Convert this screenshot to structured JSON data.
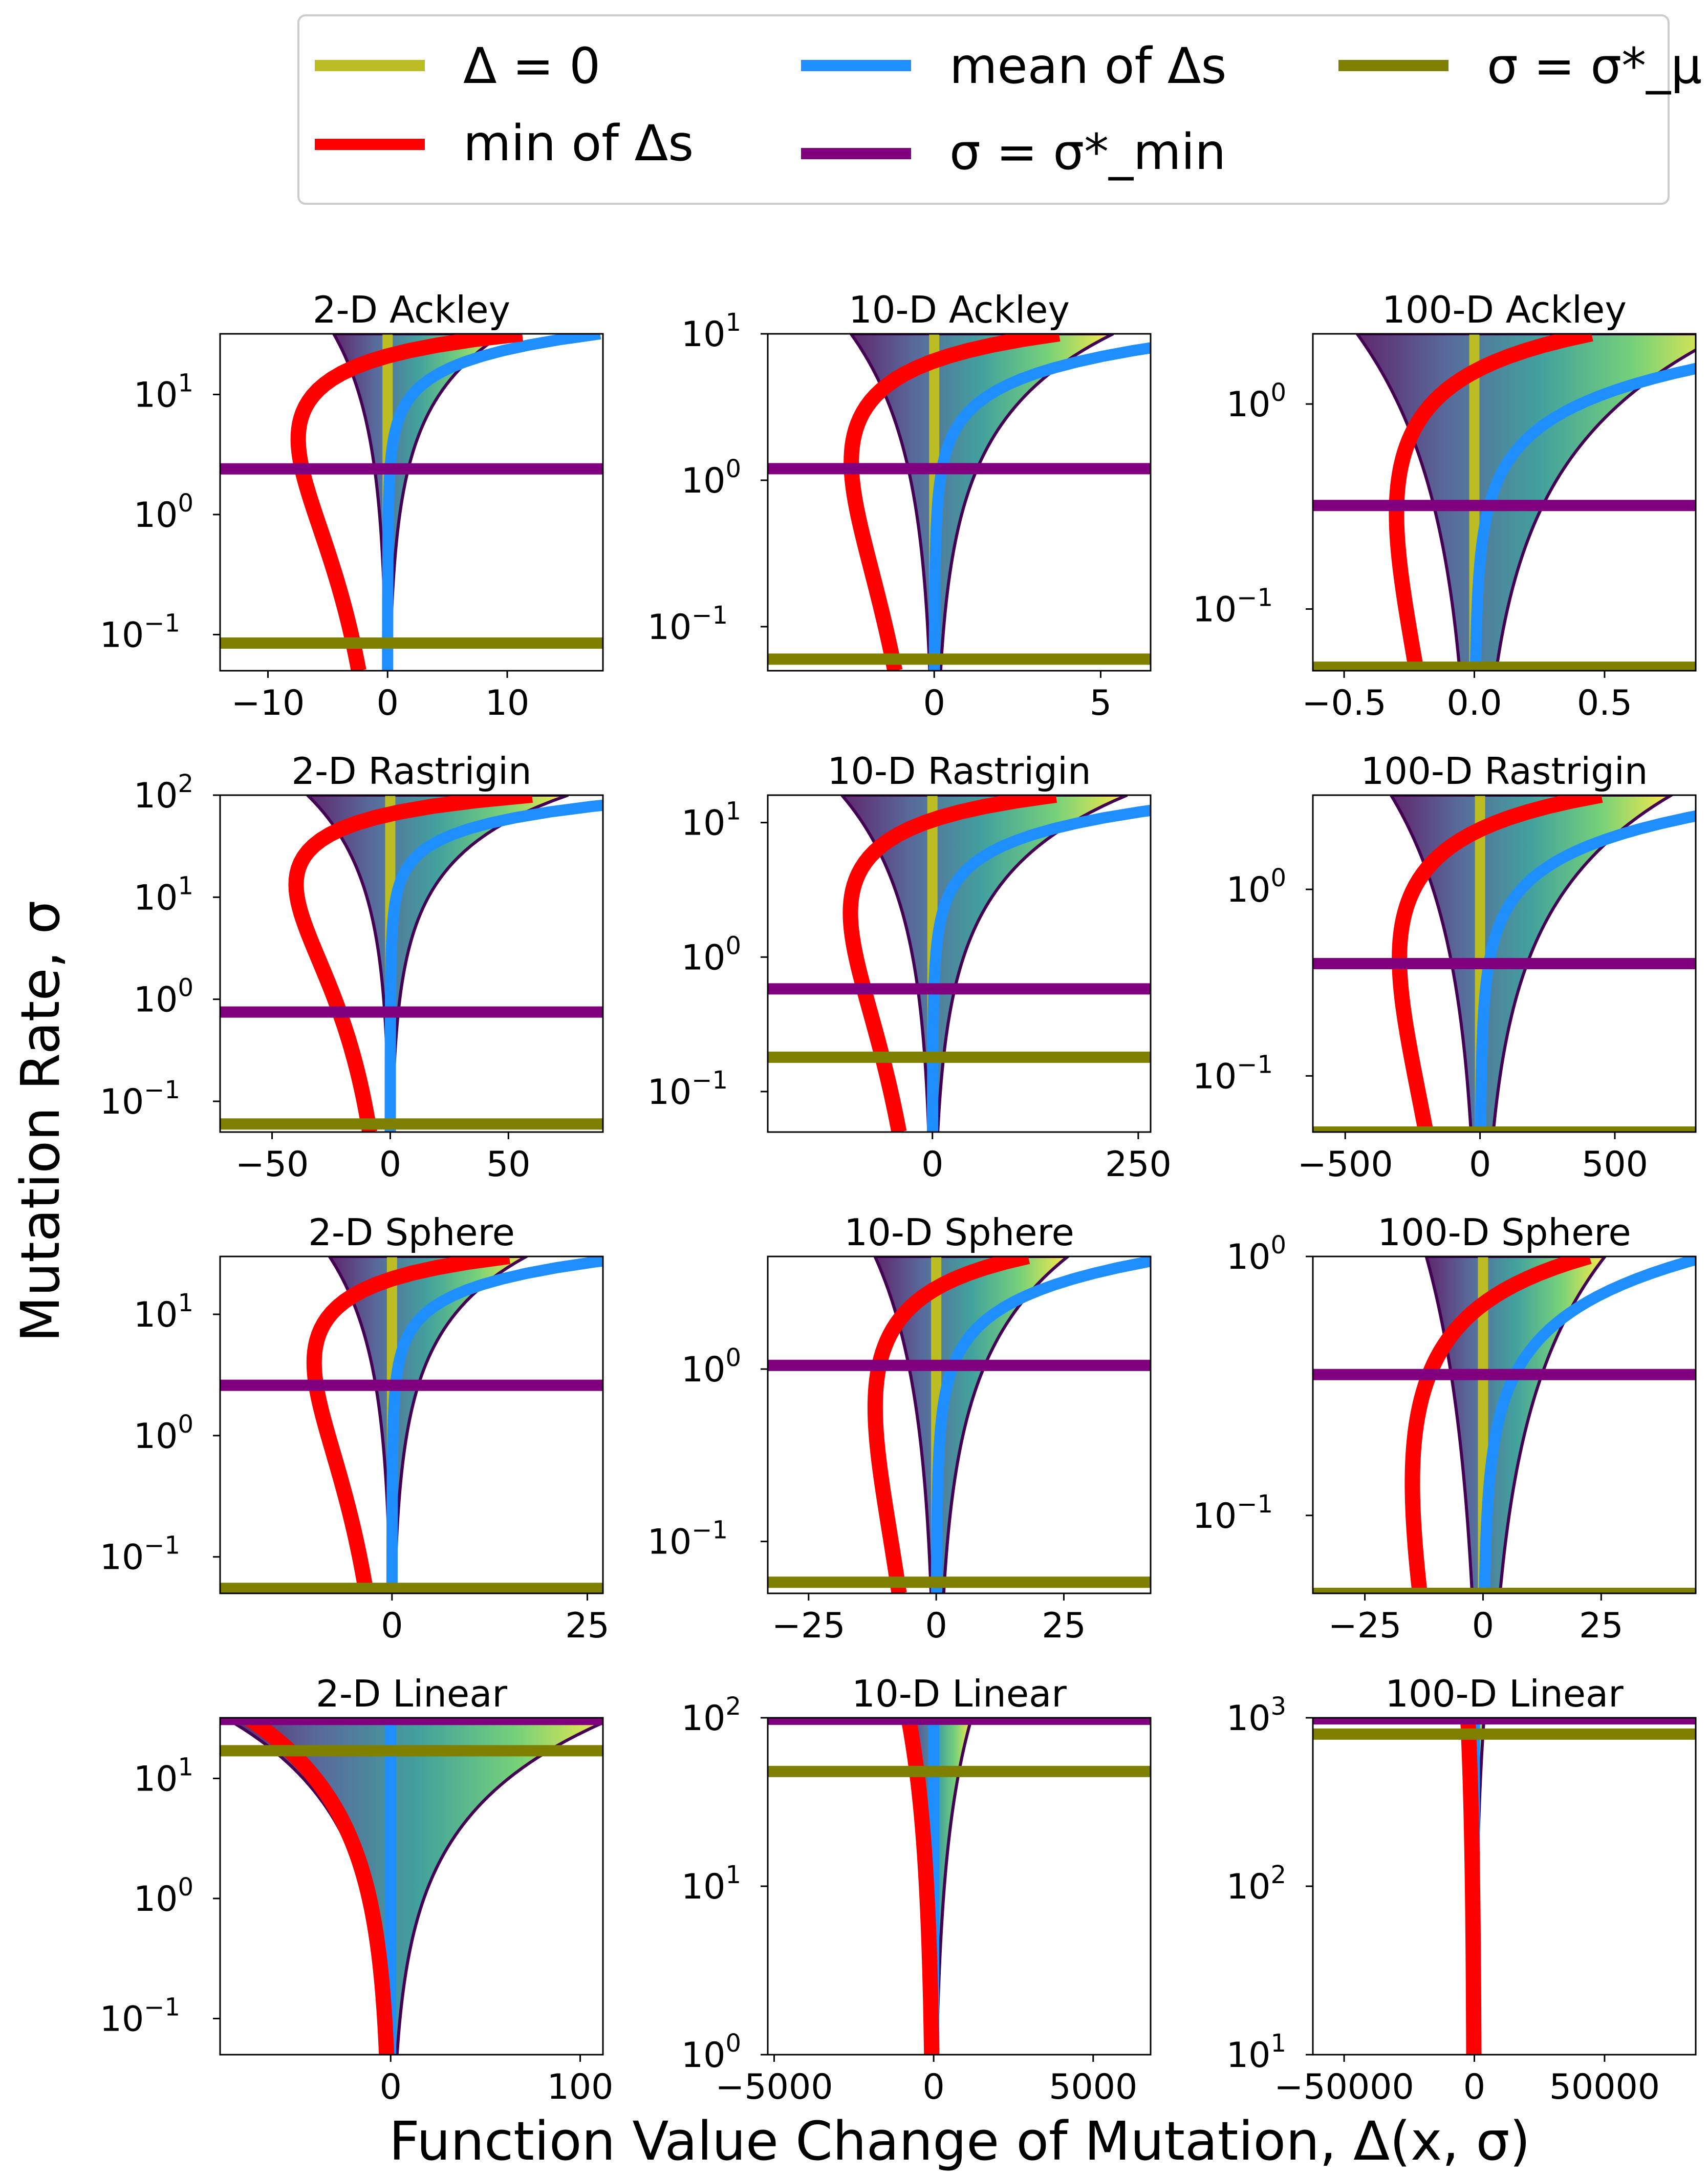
{
  "figure": {
    "ylabel": "Mutation Rate, σ",
    "xlabel": "Function Value Change of Mutation, Δ(x, σ)"
  },
  "legend": {
    "placement": "top-center",
    "entries": [
      {
        "key": "delta0",
        "label": "Δ = 0",
        "color": "#bcbd22"
      },
      {
        "key": "min",
        "label": "min of Δs",
        "color": "#ff0000"
      },
      {
        "key": "mean",
        "label": "mean of Δs",
        "color": "#1f8fff"
      },
      {
        "key": "sigma_min",
        "label": "σ = σ*_min",
        "color": "#800080"
      },
      {
        "key": "sigma_mu",
        "label": "σ = σ*_μ",
        "color": "#808000"
      }
    ]
  },
  "chart_data": [
    {
      "type": "heatmap",
      "title": "2-D Ackley",
      "xlim": [
        -14,
        18
      ],
      "ylim": [
        0.05,
        32
      ],
      "xticks": [
        {
          "v": -10,
          "t": "−10"
        },
        {
          "v": 0,
          "t": "0"
        },
        {
          "v": 10,
          "t": "10"
        }
      ],
      "yticks": [
        {
          "v": 10,
          "e": "1"
        },
        {
          "v": 1,
          "e": "0"
        },
        {
          "v": 0.1,
          "e": "−1"
        }
      ],
      "sigma_min": 2.4,
      "sigma_mu": 0.085,
      "spread": 4.5,
      "minmax": 7.5
    },
    {
      "type": "heatmap",
      "title": "10-D Ackley",
      "xlim": [
        -5,
        6.5
      ],
      "ylim": [
        0.05,
        10
      ],
      "xticks": [
        {
          "v": 0,
          "t": "0"
        },
        {
          "v": 5,
          "t": "5"
        }
      ],
      "yticks": [
        {
          "v": 10,
          "e": "1"
        },
        {
          "v": 1,
          "e": "0"
        },
        {
          "v": 0.1,
          "e": "−1"
        }
      ],
      "sigma_min": 1.2,
      "sigma_mu": 0.06,
      "spread": 2.5,
      "minmax": 2.5
    },
    {
      "type": "heatmap",
      "title": "100-D Ackley",
      "xlim": [
        -0.62,
        0.85
      ],
      "ylim": [
        0.05,
        2.2
      ],
      "xticks": [
        {
          "v": -0.5,
          "t": "−0.5"
        },
        {
          "v": 0,
          "t": "0.0"
        },
        {
          "v": 0.5,
          "t": "0.5"
        }
      ],
      "yticks": [
        {
          "v": 1,
          "e": "0"
        },
        {
          "v": 0.1,
          "e": "−1"
        }
      ],
      "sigma_min": 0.32,
      "sigma_mu": 0.052,
      "spread": 0.45,
      "minmax": 0.3
    },
    {
      "type": "heatmap",
      "title": "2-D Rastrigin",
      "xlim": [
        -72,
        90
      ],
      "ylim": [
        0.05,
        100
      ],
      "xticks": [
        {
          "v": -50,
          "t": "−50"
        },
        {
          "v": 0,
          "t": "0"
        },
        {
          "v": 50,
          "t": "50"
        }
      ],
      "yticks": [
        {
          "v": 100,
          "e": "2"
        },
        {
          "v": 10,
          "e": "1"
        },
        {
          "v": 1,
          "e": "0"
        },
        {
          "v": 0.1,
          "e": "−1"
        }
      ],
      "sigma_min": 0.75,
      "sigma_mu": 0.06,
      "spread": 35,
      "minmax": 40
    },
    {
      "type": "heatmap",
      "title": "10-D Rastrigin",
      "xlim": [
        -200,
        265
      ],
      "ylim": [
        0.05,
        16
      ],
      "xticks": [
        {
          "v": 0,
          "t": "0"
        },
        {
          "v": 250,
          "t": "250"
        }
      ],
      "yticks": [
        {
          "v": 10,
          "e": "1"
        },
        {
          "v": 1,
          "e": "0"
        },
        {
          "v": 0.1,
          "e": "−1"
        }
      ],
      "sigma_min": 0.58,
      "sigma_mu": 0.18,
      "spread": 110,
      "minmax": 100
    },
    {
      "type": "heatmap",
      "title": "100-D Rastrigin",
      "xlim": [
        -620,
        800
      ],
      "ylim": [
        0.05,
        3.2
      ],
      "xticks": [
        {
          "v": -500,
          "t": "−500"
        },
        {
          "v": 0,
          "t": "0"
        },
        {
          "v": 500,
          "t": "500"
        }
      ],
      "yticks": [
        {
          "v": 1,
          "e": "0"
        },
        {
          "v": 0.1,
          "e": "−1"
        }
      ],
      "sigma_min": 0.4,
      "sigma_mu": 0.05,
      "spread": 330,
      "minmax": 300
    },
    {
      "type": "heatmap",
      "title": "2-D Sphere",
      "xlim": [
        -22,
        27
      ],
      "ylim": [
        0.05,
        30
      ],
      "xticks": [
        {
          "v": 0,
          "t": "0"
        },
        {
          "v": 25,
          "t": "25"
        }
      ],
      "yticks": [
        {
          "v": 10,
          "e": "1"
        },
        {
          "v": 1,
          "e": "0"
        },
        {
          "v": 0.1,
          "e": "−1"
        }
      ],
      "sigma_min": 2.6,
      "sigma_mu": 0.055,
      "spread": 8,
      "minmax": 10
    },
    {
      "type": "heatmap",
      "title": "10-D Sphere",
      "xlim": [
        -33,
        42
      ],
      "ylim": [
        0.05,
        4.5
      ],
      "xticks": [
        {
          "v": -25,
          "t": "−25"
        },
        {
          "v": 0,
          "t": "0"
        },
        {
          "v": 25,
          "t": "25"
        }
      ],
      "yticks": [
        {
          "v": 1,
          "e": "0"
        },
        {
          "v": 0.1,
          "e": "−1"
        }
      ],
      "sigma_min": 1.05,
      "sigma_mu": 0.058,
      "spread": 12,
      "minmax": 12
    },
    {
      "type": "heatmap",
      "title": "100-D Sphere",
      "xlim": [
        -36,
        45
      ],
      "ylim": [
        0.05,
        1
      ],
      "xticks": [
        {
          "v": -25,
          "t": "−25"
        },
        {
          "v": 0,
          "t": "0"
        },
        {
          "v": 25,
          "t": "25"
        }
      ],
      "yticks": [
        {
          "v": 1,
          "e": "0"
        },
        {
          "v": 0.1,
          "e": "−1"
        }
      ],
      "sigma_min": 0.35,
      "sigma_mu": 0.05,
      "spread": 12,
      "minmax": 15
    },
    {
      "type": "heatmap",
      "title": "2-D Linear",
      "xlim": [
        -90,
        112
      ],
      "ylim": [
        0.05,
        32
      ],
      "xticks": [
        {
          "v": 0,
          "t": "0"
        },
        {
          "v": 100,
          "t": "100"
        }
      ],
      "yticks": [
        {
          "v": 10,
          "e": "1"
        },
        {
          "v": 1,
          "e": "0"
        },
        {
          "v": 0.1,
          "e": "−1"
        }
      ],
      "sigma_min": 31,
      "sigma_mu": 17,
      "spread": 2.5,
      "minmax": 2.4,
      "linear": true
    },
    {
      "type": "heatmap",
      "title": "10-D Linear",
      "xlim": [
        -5200,
        6800
      ],
      "ylim": [
        1,
        100
      ],
      "xticks": [
        {
          "v": -5000,
          "t": "−5000"
        },
        {
          "v": 0,
          "t": "0"
        },
        {
          "v": 5000,
          "t": "5000"
        }
      ],
      "yticks": [
        {
          "v": 100,
          "e": "2"
        },
        {
          "v": 10,
          "e": "1"
        },
        {
          "v": 1,
          "e": "0"
        }
      ],
      "sigma_min": 98,
      "sigma_mu": 48,
      "spread": 70,
      "minmax": 70,
      "linear": true
    },
    {
      "type": "heatmap",
      "title": "100-D Linear",
      "xlim": [
        -62000,
        85000
      ],
      "ylim": [
        10,
        1000
      ],
      "xticks": [
        {
          "v": -50000,
          "t": "−50000"
        },
        {
          "v": 0,
          "t": "0"
        },
        {
          "v": 50000,
          "t": "50000"
        }
      ],
      "yticks": [
        {
          "v": 1000,
          "e": "3"
        },
        {
          "v": 100,
          "e": "2"
        },
        {
          "v": 10,
          "e": "1"
        }
      ],
      "sigma_min": 985,
      "sigma_mu": 800,
      "spread": 220,
      "minmax": 220,
      "linear": true
    }
  ]
}
